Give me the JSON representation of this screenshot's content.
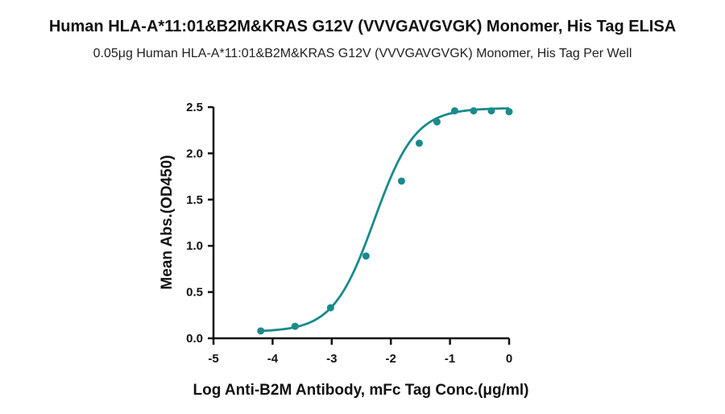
{
  "title": "Human HLA-A*11:01&B2M&KRAS G12V (VVVGAVGVGK) Monomer, His Tag ELISA",
  "subtitle": "0.05μg Human HLA-A*11:01&B2M&KRAS G12V (VVVGAVGVGK) Monomer, His Tag Per Well",
  "colors": {
    "series": "#1a8a8c",
    "axis": "#111111"
  },
  "chart_data": {
    "type": "scatter",
    "title": "Human HLA-A*11:01&B2M&KRAS G12V (VVVGAVGVGK) Monomer, His Tag ELISA",
    "subtitle": "0.05μg Human HLA-A*11:01&B2M&KRAS G12V (VVVGAVGVGK) Monomer, His Tag Per Well",
    "xlabel": "Log Anti-B2M Antibody, mFc Tag Conc.(μg/ml)",
    "ylabel": "Mean Abs.(OD450)",
    "xlim": [
      -5,
      0
    ],
    "ylim": [
      0,
      2.5
    ],
    "xticks": [
      "-5",
      "-4",
      "-3",
      "-2",
      "-1",
      "0"
    ],
    "yticks": [
      "0.0",
      "0.5",
      "1.0",
      "1.5",
      "2.0",
      "2.5"
    ],
    "grid": false,
    "fit": "sigmoidal (4PL)",
    "series": [
      {
        "x": [
          -4.2,
          -3.62,
          -3.02,
          -2.42,
          -1.82,
          -1.52,
          -1.22,
          -0.92,
          -0.6,
          -0.3,
          0
        ],
        "y": [
          0.08,
          0.13,
          0.33,
          0.89,
          1.7,
          2.11,
          2.34,
          2.46,
          2.46,
          2.46,
          2.45
        ]
      }
    ]
  }
}
